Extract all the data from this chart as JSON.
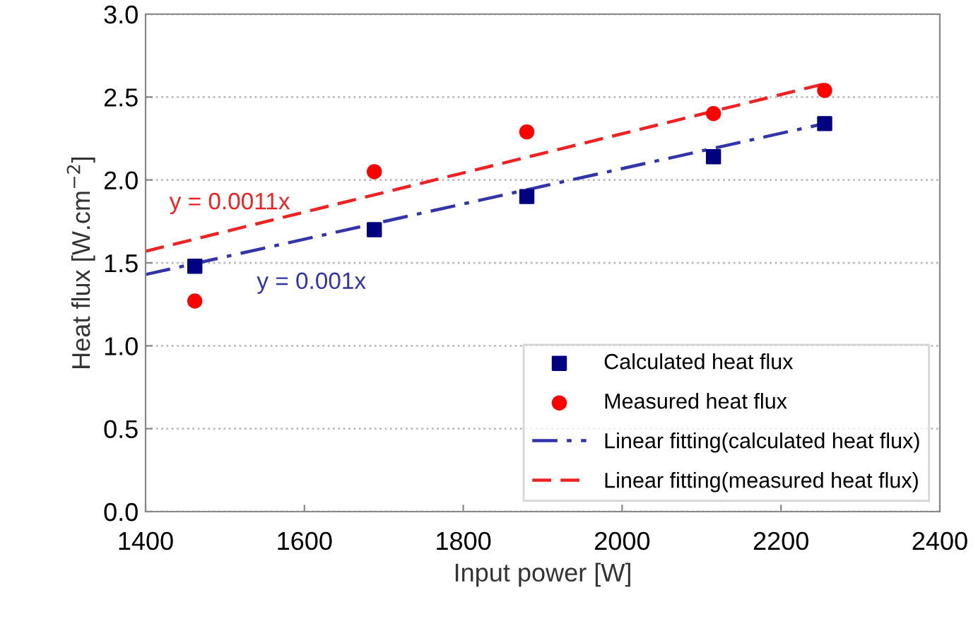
{
  "chart_data": {
    "type": "scatter",
    "xlabel": "Input power [W]",
    "ylabel": "Heat flux [W.cm$^{−2}$]",
    "xlim": [
      1400,
      2400
    ],
    "xticks": [
      1400,
      1600,
      1800,
      2000,
      2200,
      2400
    ],
    "ylim": [
      0,
      3
    ],
    "yticks": [
      {
        "value": 0,
        "label": "0.0"
      },
      {
        "value": 0.5,
        "label": "0.5"
      },
      {
        "value": 1,
        "label": "1.0"
      },
      {
        "value": 1.5,
        "label": "1.5"
      },
      {
        "value": 2,
        "label": "2.0"
      },
      {
        "value": 2.5,
        "label": "2.5"
      },
      {
        "value": 3,
        "label": "3.0"
      }
    ],
    "grid": "y",
    "legend": "bottom right",
    "series": [
      {
        "name": "Calculated heat flux",
        "marker": "square",
        "color": "#000080",
        "x": [
          1462,
          1688,
          1880,
          2115,
          2255
        ],
        "values": [
          1.48,
          1.7,
          1.9,
          2.14,
          2.34
        ]
      },
      {
        "name": "Measured heat flux",
        "marker": "circle",
        "color": "#ff0000",
        "x": [
          1462,
          1688,
          1880,
          2115,
          2255
        ],
        "values": [
          1.27,
          2.05,
          2.29,
          2.4,
          2.54
        ]
      },
      {
        "name": "Linear fitting(calculated heat flux)",
        "type": "line",
        "line_style": "dashdot",
        "color": "#3333aa",
        "x": [
          1400,
          2255
        ],
        "values": [
          1.43,
          2.34
        ]
      },
      {
        "name": "Linear fitting(measured heat flux)",
        "type": "line",
        "line_style": "dashed",
        "color": "#ee2222",
        "x": [
          1400,
          2255
        ],
        "values": [
          1.57,
          2.58
        ]
      }
    ],
    "annotations": [
      "y = 0.0011x",
      "y = 0.001x"
    ]
  }
}
